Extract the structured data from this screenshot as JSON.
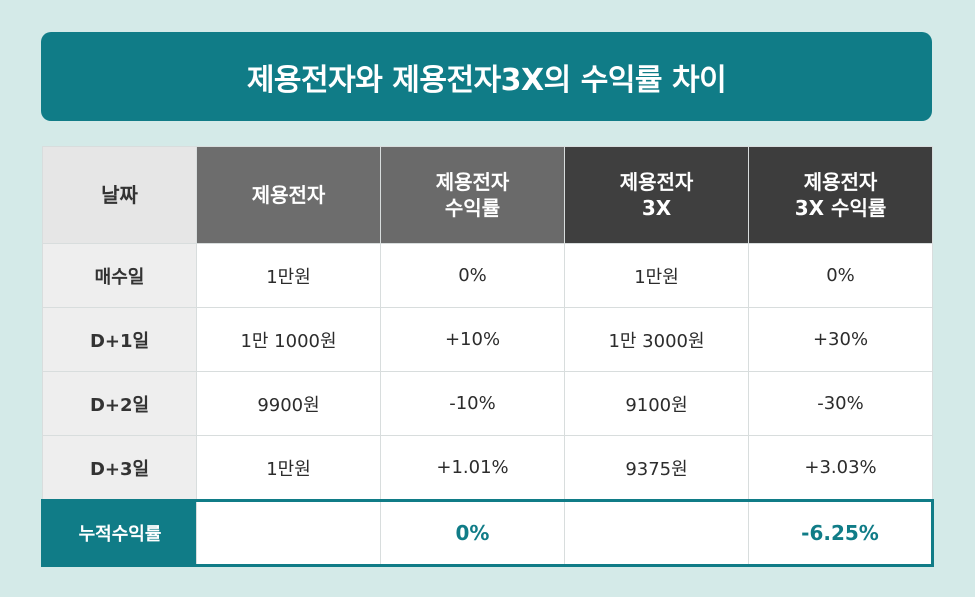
{
  "title": "제용전자와 제용전자3X의 수익률 차이",
  "header": {
    "date": "날짜",
    "col1": "제용전자",
    "col2_line1": "제용전자",
    "col2_line2": "수익률",
    "col3_line1": "제용전자",
    "col3_line2": "3X",
    "col4_line1": "제용전자",
    "col4_line2": "3X 수익률"
  },
  "rows": [
    {
      "label": "매수일",
      "price": "1만원",
      "return": "0%",
      "price3x": "1만원",
      "return3x": "0%"
    },
    {
      "label": "D+1일",
      "price": "1만 1000원",
      "return": "+10%",
      "price3x": "1만 3000원",
      "return3x": "+30%"
    },
    {
      "label": "D+2일",
      "price": "9900원",
      "return": "-10%",
      "price3x": "9100원",
      "return3x": "-30%"
    },
    {
      "label": "D+3일",
      "price": "1만원",
      "return": "+1.01%",
      "price3x": "9375원",
      "return3x": "+3.03%"
    }
  ],
  "total": {
    "label": "누적수익률",
    "price": "",
    "return": "0%",
    "price3x": "",
    "return3x": "-6.25%"
  },
  "colors": {
    "accent": "#107c87",
    "background": "#d4eae8"
  }
}
